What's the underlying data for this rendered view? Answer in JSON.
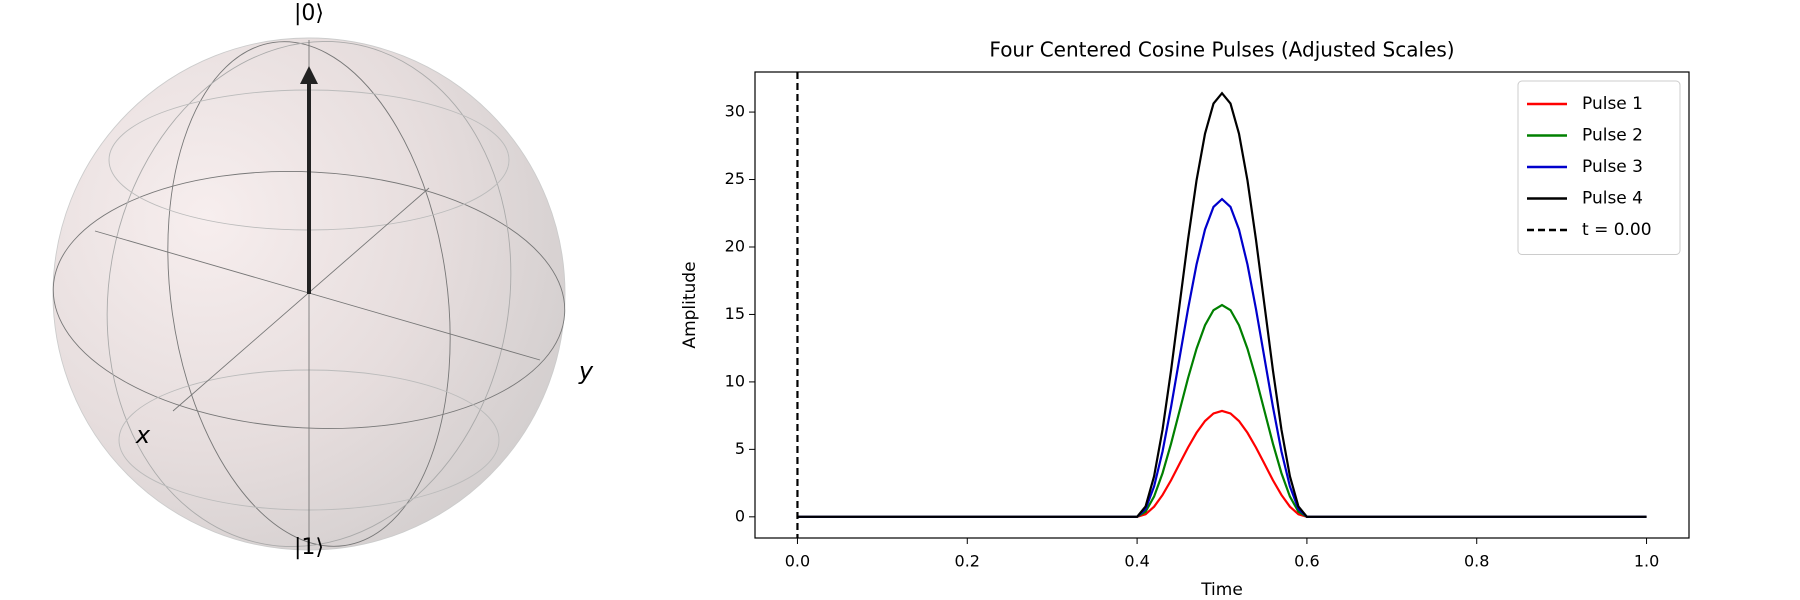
{
  "bloch_sphere": {
    "labels": {
      "zero": "|0⟩",
      "one": "|1⟩",
      "x": "x",
      "y": "y"
    }
  },
  "chart_data": {
    "type": "line",
    "title": "Four Centered Cosine Pulses (Adjusted Scales)",
    "xlabel": "Time",
    "ylabel": "Amplitude",
    "x": [
      0,
      0.4,
      0.41,
      0.42,
      0.43,
      0.44,
      0.45,
      0.46,
      0.47,
      0.48,
      0.49,
      0.5,
      0.51,
      0.52,
      0.53,
      0.54,
      0.55,
      0.56,
      0.57,
      0.58,
      0.59,
      0.6,
      1.0
    ],
    "series": [
      {
        "name": "Pulse 1",
        "color": "#ff0000",
        "values": [
          0,
          0,
          0.19,
          0.75,
          1.62,
          2.71,
          3.93,
          5.14,
          6.23,
          7.1,
          7.66,
          7.85,
          7.66,
          7.1,
          6.23,
          5.14,
          3.93,
          2.71,
          1.62,
          0.75,
          0.19,
          0,
          0
        ]
      },
      {
        "name": "Pulse 2",
        "color": "#008000",
        "values": [
          0,
          0,
          0.38,
          1.5,
          3.24,
          5.42,
          7.85,
          10.28,
          12.46,
          14.2,
          15.32,
          15.7,
          15.32,
          14.2,
          12.46,
          10.28,
          7.85,
          5.42,
          3.24,
          1.5,
          0.38,
          0,
          0
        ]
      },
      {
        "name": "Pulse 3",
        "color": "#0000cc",
        "values": [
          0,
          0,
          0.58,
          2.25,
          4.85,
          8.14,
          11.78,
          15.41,
          18.7,
          21.3,
          22.97,
          23.55,
          22.97,
          21.3,
          18.7,
          15.41,
          11.78,
          8.14,
          4.85,
          2.25,
          0.58,
          0,
          0
        ]
      },
      {
        "name": "Pulse 4",
        "color": "#000000",
        "values": [
          0,
          0,
          0.77,
          3.0,
          6.47,
          10.85,
          15.7,
          20.55,
          24.93,
          28.4,
          30.63,
          31.4,
          30.63,
          28.4,
          24.93,
          20.55,
          15.7,
          10.85,
          6.47,
          3.0,
          0.77,
          0,
          0
        ]
      }
    ],
    "vline": {
      "x": 0,
      "label": "t = 0.00",
      "color": "#000000",
      "dashed": true
    },
    "xlim": [
      -0.05,
      1.05
    ],
    "ylim": [
      -1.57,
      32.97
    ],
    "xticks": [
      {
        "value": 0,
        "label": "0.0"
      },
      {
        "value": 0.2,
        "label": "0.2"
      },
      {
        "value": 0.4,
        "label": "0.4"
      },
      {
        "value": 0.6,
        "label": "0.6"
      },
      {
        "value": 0.8,
        "label": "0.8"
      },
      {
        "value": 1,
        "label": "1.0"
      }
    ],
    "yticks": [
      0,
      5,
      10,
      15,
      20,
      25,
      30
    ],
    "grid": false,
    "legend": "upper right"
  }
}
